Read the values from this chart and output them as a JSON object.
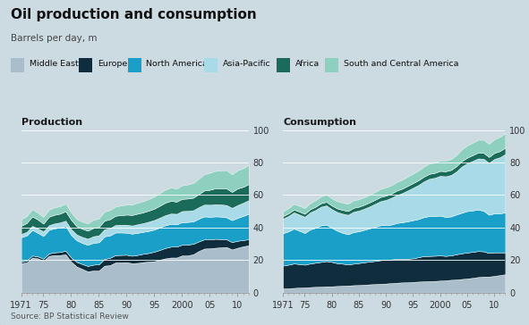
{
  "title": "Oil production and consumption",
  "subtitle": "Barrels per day, m",
  "source": "Source: BP Statistical Review",
  "background_color": "#ccdae1",
  "years": [
    1971,
    1972,
    1973,
    1974,
    1975,
    1976,
    1977,
    1978,
    1979,
    1980,
    1981,
    1982,
    1983,
    1984,
    1985,
    1986,
    1987,
    1988,
    1989,
    1990,
    1991,
    1992,
    1993,
    1994,
    1995,
    1996,
    1997,
    1998,
    1999,
    2000,
    2001,
    2002,
    2003,
    2004,
    2005,
    2006,
    2007,
    2008,
    2009,
    2010,
    2011,
    2012
  ],
  "legend_labels": [
    "Middle East",
    "Europe",
    "North America",
    "Asia-Pacific",
    "Africa",
    "South and Central America"
  ],
  "legend_colors": [
    "#aabdca",
    "#0f2d3d",
    "#1aa0c8",
    "#a8dae8",
    "#1a6b5a",
    "#8ed0c0"
  ],
  "production": {
    "Middle East": [
      18.0,
      18.5,
      21.5,
      21.0,
      19.5,
      22.5,
      23.0,
      23.0,
      23.5,
      19.0,
      16.0,
      14.5,
      13.0,
      13.5,
      13.5,
      16.5,
      16.8,
      18.5,
      18.5,
      18.6,
      18.0,
      18.2,
      18.7,
      19.0,
      19.2,
      20.2,
      21.0,
      21.5,
      21.5,
      22.8,
      22.8,
      23.5,
      25.5,
      27.0,
      27.2,
      27.5,
      27.8,
      28.0,
      26.5,
      27.5,
      28.4,
      29.0
    ],
    "Europe": [
      1.0,
      1.1,
      1.2,
      1.2,
      1.3,
      1.5,
      1.7,
      1.9,
      2.2,
      2.5,
      2.8,
      3.0,
      3.3,
      3.6,
      3.8,
      4.2,
      4.5,
      4.5,
      4.6,
      4.6,
      4.6,
      4.9,
      5.1,
      5.3,
      5.9,
      6.0,
      6.4,
      6.7,
      6.7,
      6.6,
      6.7,
      6.4,
      5.9,
      5.7,
      5.5,
      5.5,
      5.1,
      4.7,
      4.5,
      4.3,
      3.9,
      3.7
    ],
    "North America": [
      15.0,
      15.5,
      15.8,
      14.5,
      14.0,
      14.5,
      14.8,
      15.0,
      15.2,
      14.0,
      13.3,
      13.0,
      13.0,
      13.5,
      13.6,
      13.8,
      13.8,
      13.9,
      13.8,
      13.6,
      13.6,
      13.6,
      13.5,
      13.6,
      13.6,
      13.9,
      14.0,
      14.0,
      13.7,
      13.9,
      13.9,
      13.8,
      14.0,
      14.1,
      13.9,
      13.8,
      13.8,
      13.5,
      13.5,
      14.1,
      14.8,
      15.7
    ],
    "Asia-Pacific": [
      2.0,
      2.2,
      2.5,
      2.7,
      2.8,
      2.9,
      3.0,
      3.2,
      3.3,
      3.5,
      3.6,
      3.7,
      3.8,
      4.0,
      4.3,
      4.4,
      4.5,
      4.7,
      4.8,
      4.9,
      5.0,
      5.3,
      5.4,
      5.7,
      5.9,
      6.0,
      6.2,
      6.4,
      6.5,
      6.8,
      6.9,
      6.9,
      7.1,
      7.3,
      7.4,
      7.5,
      7.5,
      7.6,
      7.6,
      7.9,
      8.1,
      8.4
    ],
    "Africa": [
      5.0,
      5.5,
      5.8,
      5.5,
      4.8,
      5.2,
      5.3,
      5.4,
      5.8,
      5.7,
      5.1,
      5.0,
      4.9,
      5.1,
      5.1,
      5.3,
      5.5,
      5.6,
      5.9,
      6.2,
      6.5,
      6.5,
      6.6,
      6.8,
      7.0,
      7.3,
      7.7,
      7.8,
      7.5,
      7.5,
      7.5,
      7.7,
      8.0,
      8.7,
      9.2,
      9.8,
      9.9,
      10.2,
      9.8,
      10.2,
      9.8,
      9.9
    ],
    "South and Central America": [
      4.0,
      4.2,
      4.4,
      4.2,
      4.0,
      4.3,
      4.6,
      4.6,
      4.7,
      4.6,
      4.4,
      4.4,
      4.5,
      5.0,
      5.2,
      5.5,
      5.6,
      5.7,
      5.9,
      6.2,
      6.4,
      6.7,
      6.9,
      7.1,
      7.4,
      7.8,
      8.0,
      8.2,
      8.0,
      8.3,
      8.7,
      9.0,
      9.5,
      10.0,
      10.4,
      10.7,
      11.0,
      11.3,
      10.8,
      11.2,
      11.4,
      11.7
    ]
  },
  "consumption": {
    "Middle East": [
      2.5,
      2.6,
      2.8,
      3.0,
      3.1,
      3.3,
      3.5,
      3.6,
      3.8,
      3.8,
      4.0,
      4.2,
      4.3,
      4.5,
      4.6,
      4.8,
      5.0,
      5.2,
      5.4,
      5.5,
      5.8,
      6.0,
      6.2,
      6.3,
      6.5,
      6.7,
      6.9,
      7.0,
      7.1,
      7.3,
      7.5,
      7.8,
      8.0,
      8.3,
      8.6,
      9.0,
      9.5,
      9.8,
      9.8,
      10.2,
      10.7,
      11.2
    ],
    "Europe": [
      14.0,
      14.5,
      15.0,
      14.5,
      14.0,
      14.5,
      14.8,
      15.2,
      15.5,
      15.0,
      14.0,
      13.5,
      13.0,
      13.2,
      13.5,
      13.8,
      14.0,
      14.2,
      14.5,
      14.5,
      14.5,
      14.8,
      14.5,
      14.5,
      14.5,
      15.0,
      15.5,
      15.5,
      15.5,
      15.5,
      15.0,
      15.0,
      15.5,
      15.8,
      16.0,
      16.0,
      16.0,
      15.5,
      14.5,
      14.5,
      14.0,
      13.5
    ],
    "North America": [
      20.0,
      20.5,
      21.5,
      20.5,
      19.5,
      21.0,
      21.5,
      22.5,
      22.5,
      21.0,
      20.0,
      19.0,
      18.5,
      19.5,
      19.5,
      20.0,
      20.5,
      21.0,
      21.5,
      21.5,
      21.5,
      22.0,
      22.5,
      23.0,
      23.5,
      23.5,
      24.0,
      24.5,
      24.5,
      24.5,
      24.0,
      24.0,
      24.5,
      25.0,
      25.5,
      25.5,
      25.5,
      25.0,
      23.5,
      24.0,
      24.0,
      24.5
    ],
    "Asia-Pacific": [
      9.0,
      9.5,
      10.0,
      10.0,
      10.0,
      10.5,
      11.0,
      11.5,
      11.8,
      11.5,
      11.5,
      11.8,
      12.0,
      12.5,
      12.8,
      13.0,
      13.5,
      14.2,
      14.8,
      15.5,
      16.5,
      17.2,
      18.0,
      19.0,
      20.0,
      21.0,
      22.0,
      23.0,
      23.5,
      24.5,
      25.0,
      25.5,
      26.5,
      28.5,
      29.5,
      30.5,
      31.5,
      32.0,
      32.0,
      33.5,
      34.5,
      36.0
    ],
    "Africa": [
      1.5,
      1.6,
      1.7,
      1.8,
      1.8,
      1.9,
      2.0,
      2.1,
      2.2,
      2.2,
      2.2,
      2.3,
      2.3,
      2.4,
      2.4,
      2.4,
      2.5,
      2.5,
      2.6,
      2.6,
      2.6,
      2.7,
      2.7,
      2.8,
      2.8,
      2.9,
      2.9,
      3.0,
      3.0,
      3.0,
      3.1,
      3.1,
      3.2,
      3.3,
      3.4,
      3.5,
      3.6,
      3.6,
      3.6,
      3.7,
      3.8,
      3.9
    ],
    "South and Central America": [
      3.0,
      3.2,
      3.5,
      3.5,
      3.6,
      3.8,
      4.0,
      4.2,
      4.4,
      4.4,
      4.4,
      4.5,
      4.5,
      4.6,
      4.6,
      4.6,
      4.7,
      4.8,
      5.0,
      5.1,
      5.1,
      5.3,
      5.5,
      5.7,
      5.8,
      6.0,
      6.2,
      6.4,
      6.3,
      6.5,
      6.6,
      6.7,
      6.9,
      7.2,
      7.5,
      7.7,
      7.9,
      8.1,
      8.0,
      8.4,
      8.7,
      9.0
    ]
  },
  "ylim": [
    0,
    100
  ],
  "yticks": [
    0,
    20,
    40,
    60,
    80,
    100
  ],
  "xtick_years": [
    1971,
    1975,
    1980,
    1985,
    1990,
    1995,
    2000,
    2005,
    2010
  ],
  "xtick_labels": [
    "1971",
    "75",
    "80",
    "85",
    "90",
    "95",
    "2000",
    "05",
    "10"
  ]
}
